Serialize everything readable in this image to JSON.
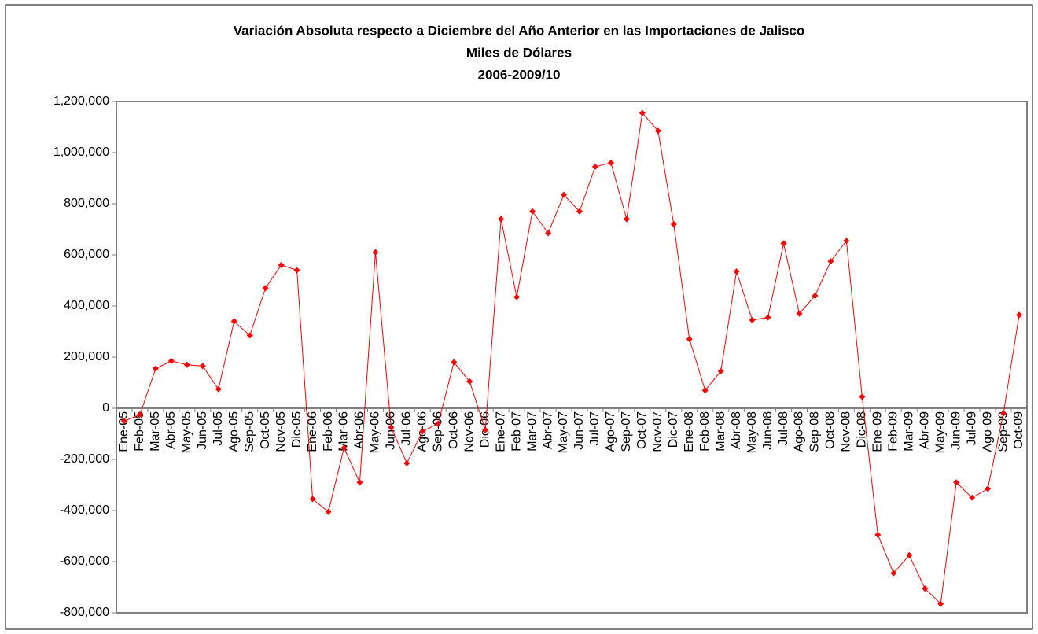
{
  "chart_data": {
    "type": "line",
    "title": [
      "Variación Absoluta respecto a Diciembre del Año Anterior en las Importaciones de Jalisco",
      "Miles de Dólares",
      "2006-2009/10"
    ],
    "categories": [
      "Ene-05",
      "Feb-05",
      "Mar-05",
      "Abr-05",
      "May-05",
      "Jun-05",
      "Jul-05",
      "Ago-05",
      "Sep-05",
      "Oct-05",
      "Nov-05",
      "Dic-05",
      "Ene-06",
      "Feb-06",
      "Mar-06",
      "Abr-06",
      "May-06",
      "Jun-06",
      "Jul-06",
      "Ago-06",
      "Sep-06",
      "Oct-06",
      "Nov-06",
      "Dic-06",
      "Ene-07",
      "Feb-07",
      "Mar-07",
      "Abr-07",
      "May-07",
      "Jun-07",
      "Jul-07",
      "Ago-07",
      "Sep-07",
      "Oct-07",
      "Nov-07",
      "Dic-07",
      "Ene-08",
      "Feb-08",
      "Mar-08",
      "Abr-08",
      "May-08",
      "Jun-08",
      "Jul-08",
      "Ago-08",
      "Sep-08",
      "Oct-08",
      "Nov-08",
      "Dic-08",
      "Ene-09",
      "Feb-09",
      "Mar-09",
      "Abr-09",
      "May-09",
      "Jun-09",
      "Jul-09",
      "Ago-09",
      "Sep-09",
      "Oct-09"
    ],
    "values": [
      -50000,
      -25000,
      155000,
      185000,
      170000,
      165000,
      75000,
      340000,
      285000,
      470000,
      560000,
      540000,
      -355000,
      -405000,
      -155000,
      -290000,
      610000,
      -75000,
      -215000,
      -90000,
      -60000,
      180000,
      105000,
      -85000,
      740000,
      435000,
      770000,
      685000,
      835000,
      770000,
      945000,
      960000,
      740000,
      1155000,
      1085000,
      720000,
      270000,
      70000,
      145000,
      535000,
      345000,
      355000,
      645000,
      370000,
      440000,
      575000,
      655000,
      45000,
      -495000,
      -645000,
      -575000,
      -705000,
      -765000,
      -290000,
      -350000,
      -315000,
      -20000,
      365000
    ],
    "color": "#ff0000",
    "ylim": [
      -800000,
      1200000
    ],
    "yticks": [
      {
        "value": -800000,
        "label": "-800,000"
      },
      {
        "value": -600000,
        "label": "-600,000"
      },
      {
        "value": -400000,
        "label": "-400,000"
      },
      {
        "value": -200000,
        "label": "-200,000"
      },
      0,
      {
        "value": 200000,
        "label": "200,000"
      },
      {
        "value": 400000,
        "label": "400,000"
      },
      {
        "value": 600000,
        "label": "600,000"
      },
      {
        "value": 800000,
        "label": "800,000"
      },
      {
        "value": 1000000,
        "label": "1,000,000"
      },
      {
        "value": 1200000,
        "label": "1,200,000"
      }
    ],
    "grid": false
  }
}
